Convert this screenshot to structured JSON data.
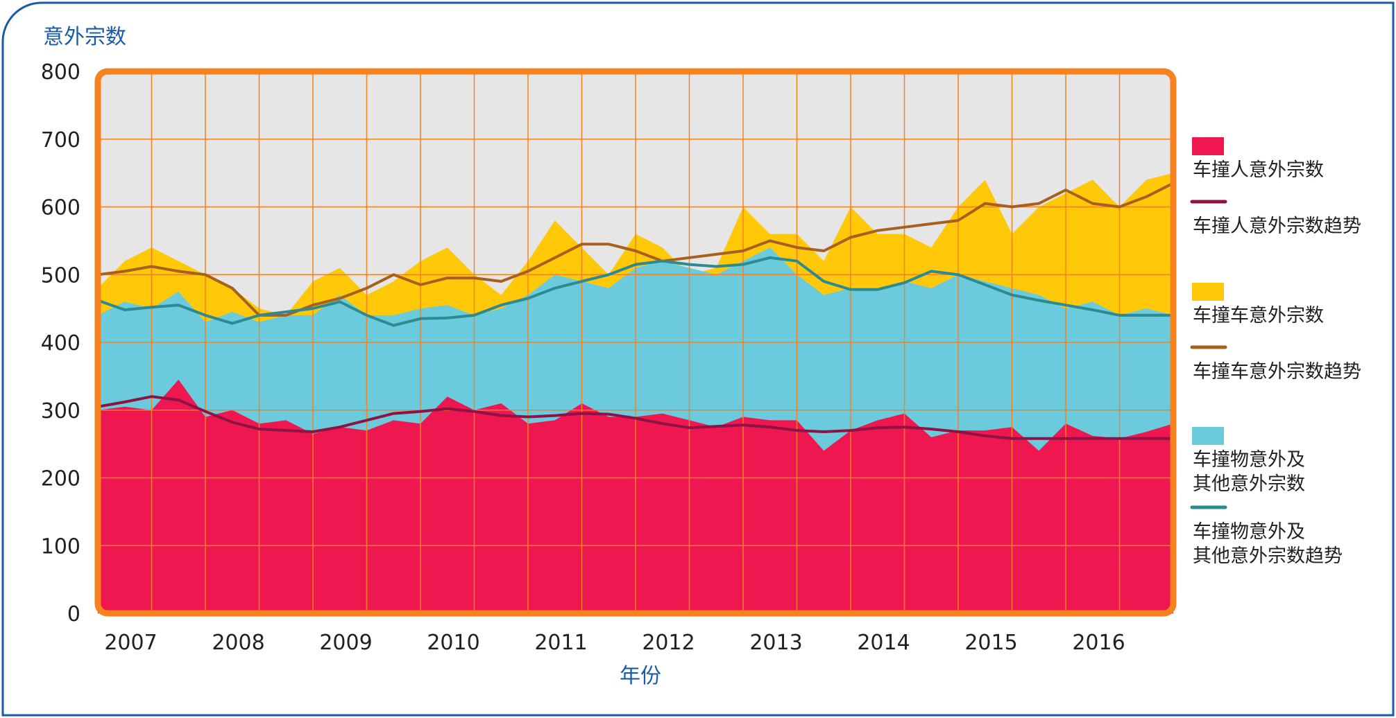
{
  "chart_data": {
    "type": "area",
    "ylabel": "意外宗数",
    "xlabel": "年份",
    "ylim": [
      0,
      800
    ],
    "yticks": [
      0,
      100,
      200,
      300,
      400,
      500,
      600,
      700,
      800
    ],
    "x_years": [
      "2007",
      "2008",
      "2009",
      "2010",
      "2011",
      "2012",
      "2013",
      "2014",
      "2015",
      "2016"
    ],
    "x_range": [
      2007.0,
      2017.0
    ],
    "stacked": true,
    "grid": true,
    "legend_position": "right",
    "series": [
      {
        "name": "车撞人意外宗数",
        "kind": "area",
        "color": "#EE1750",
        "points": [
          [
            2007.0,
            300
          ],
          [
            2007.25,
            305
          ],
          [
            2007.5,
            300
          ],
          [
            2007.75,
            345
          ],
          [
            2008.0,
            290
          ],
          [
            2008.25,
            300
          ],
          [
            2008.5,
            280
          ],
          [
            2008.75,
            285
          ],
          [
            2009.0,
            265
          ],
          [
            2009.25,
            275
          ],
          [
            2009.5,
            270
          ],
          [
            2009.75,
            285
          ],
          [
            2010.0,
            280
          ],
          [
            2010.25,
            320
          ],
          [
            2010.5,
            300
          ],
          [
            2010.75,
            310
          ],
          [
            2011.0,
            280
          ],
          [
            2011.25,
            285
          ],
          [
            2011.5,
            310
          ],
          [
            2011.75,
            290
          ],
          [
            2012.0,
            290
          ],
          [
            2012.25,
            295
          ],
          [
            2012.5,
            285
          ],
          [
            2012.75,
            275
          ],
          [
            2013.0,
            290
          ],
          [
            2013.25,
            285
          ],
          [
            2013.5,
            285
          ],
          [
            2013.75,
            240
          ],
          [
            2014.0,
            270
          ],
          [
            2014.25,
            285
          ],
          [
            2014.5,
            295
          ],
          [
            2014.75,
            260
          ],
          [
            2015.0,
            270
          ],
          [
            2015.25,
            270
          ],
          [
            2015.5,
            275
          ],
          [
            2015.75,
            240
          ],
          [
            2016.0,
            280
          ],
          [
            2016.25,
            262
          ],
          [
            2016.5,
            258
          ],
          [
            2016.75,
            268
          ],
          [
            2017.0,
            280
          ]
        ]
      },
      {
        "name": "车撞人意外宗数趋势",
        "kind": "line",
        "color": "#8E1345",
        "points": [
          [
            2007.0,
            305
          ],
          [
            2007.25,
            312
          ],
          [
            2007.5,
            320
          ],
          [
            2007.75,
            315
          ],
          [
            2008.0,
            298
          ],
          [
            2008.25,
            282
          ],
          [
            2008.5,
            272
          ],
          [
            2008.75,
            270
          ],
          [
            2009.0,
            268
          ],
          [
            2009.25,
            275
          ],
          [
            2009.5,
            285
          ],
          [
            2009.75,
            295
          ],
          [
            2010.0,
            298
          ],
          [
            2010.25,
            302
          ],
          [
            2010.5,
            298
          ],
          [
            2010.75,
            292
          ],
          [
            2011.0,
            290
          ],
          [
            2011.25,
            292
          ],
          [
            2011.5,
            295
          ],
          [
            2011.75,
            294
          ],
          [
            2012.0,
            288
          ],
          [
            2012.25,
            280
          ],
          [
            2012.5,
            274
          ],
          [
            2012.75,
            276
          ],
          [
            2013.0,
            278
          ],
          [
            2013.25,
            275
          ],
          [
            2013.5,
            270
          ],
          [
            2013.75,
            268
          ],
          [
            2014.0,
            270
          ],
          [
            2014.25,
            274
          ],
          [
            2014.5,
            275
          ],
          [
            2014.75,
            272
          ],
          [
            2015.0,
            268
          ],
          [
            2015.25,
            262
          ],
          [
            2015.5,
            258
          ],
          [
            2015.75,
            258
          ],
          [
            2016.0,
            258
          ],
          [
            2016.25,
            258
          ],
          [
            2016.5,
            258
          ],
          [
            2016.75,
            258
          ],
          [
            2017.0,
            258
          ]
        ]
      },
      {
        "name": "车撞车意外宗数",
        "kind": "area",
        "color": "#FFC90A",
        "points": [
          [
            2007.0,
            480
          ],
          [
            2007.25,
            520
          ],
          [
            2007.5,
            540
          ],
          [
            2007.75,
            520
          ],
          [
            2008.0,
            500
          ],
          [
            2008.25,
            480
          ],
          [
            2008.5,
            450
          ],
          [
            2008.75,
            440
          ],
          [
            2009.0,
            490
          ],
          [
            2009.25,
            510
          ],
          [
            2009.5,
            470
          ],
          [
            2009.75,
            490
          ],
          [
            2010.0,
            520
          ],
          [
            2010.25,
            540
          ],
          [
            2010.5,
            500
          ],
          [
            2010.75,
            470
          ],
          [
            2011.0,
            520
          ],
          [
            2011.25,
            580
          ],
          [
            2011.5,
            540
          ],
          [
            2011.75,
            500
          ],
          [
            2012.0,
            560
          ],
          [
            2012.25,
            540
          ],
          [
            2012.5,
            500
          ],
          [
            2012.75,
            510
          ],
          [
            2013.0,
            600
          ],
          [
            2013.25,
            560
          ],
          [
            2013.5,
            560
          ],
          [
            2013.75,
            520
          ],
          [
            2014.0,
            600
          ],
          [
            2014.25,
            560
          ],
          [
            2014.5,
            560
          ],
          [
            2014.75,
            540
          ],
          [
            2015.0,
            600
          ],
          [
            2015.25,
            640
          ],
          [
            2015.5,
            560
          ],
          [
            2015.75,
            600
          ],
          [
            2016.0,
            620
          ],
          [
            2016.25,
            640
          ],
          [
            2016.5,
            600
          ],
          [
            2016.75,
            640
          ],
          [
            2017.0,
            650
          ]
        ]
      },
      {
        "name": "车撞车意外宗数趋势",
        "kind": "line",
        "color": "#A8601E",
        "points": [
          [
            2007.0,
            500
          ],
          [
            2007.25,
            505
          ],
          [
            2007.5,
            512
          ],
          [
            2007.75,
            505
          ],
          [
            2008.0,
            500
          ],
          [
            2008.25,
            480
          ],
          [
            2008.5,
            440
          ],
          [
            2008.75,
            440
          ],
          [
            2009.0,
            455
          ],
          [
            2009.25,
            465
          ],
          [
            2009.5,
            480
          ],
          [
            2009.75,
            500
          ],
          [
            2010.0,
            485
          ],
          [
            2010.25,
            495
          ],
          [
            2010.5,
            495
          ],
          [
            2010.75,
            490
          ],
          [
            2011.0,
            505
          ],
          [
            2011.25,
            525
          ],
          [
            2011.5,
            545
          ],
          [
            2011.75,
            545
          ],
          [
            2012.0,
            535
          ],
          [
            2012.25,
            520
          ],
          [
            2012.5,
            525
          ],
          [
            2012.75,
            530
          ],
          [
            2013.0,
            535
          ],
          [
            2013.25,
            550
          ],
          [
            2013.5,
            540
          ],
          [
            2013.75,
            535
          ],
          [
            2014.0,
            555
          ],
          [
            2014.25,
            565
          ],
          [
            2014.5,
            570
          ],
          [
            2014.75,
            575
          ],
          [
            2015.0,
            580
          ],
          [
            2015.25,
            605
          ],
          [
            2015.5,
            600
          ],
          [
            2015.75,
            605
          ],
          [
            2016.0,
            625
          ],
          [
            2016.25,
            605
          ],
          [
            2016.5,
            600
          ],
          [
            2016.75,
            615
          ],
          [
            2017.0,
            635
          ]
        ]
      },
      {
        "name": "车撞物意外及其他意外宗数",
        "kind": "area",
        "color": "#6BCBDD",
        "points": [
          [
            2007.0,
            440
          ],
          [
            2007.25,
            460
          ],
          [
            2007.5,
            450
          ],
          [
            2007.75,
            475
          ],
          [
            2008.0,
            430
          ],
          [
            2008.25,
            445
          ],
          [
            2008.5,
            430
          ],
          [
            2008.75,
            440
          ],
          [
            2009.0,
            440
          ],
          [
            2009.25,
            470
          ],
          [
            2009.5,
            440
          ],
          [
            2009.75,
            440
          ],
          [
            2010.0,
            450
          ],
          [
            2010.25,
            455
          ],
          [
            2010.5,
            440
          ],
          [
            2010.75,
            450
          ],
          [
            2011.0,
            470
          ],
          [
            2011.25,
            500
          ],
          [
            2011.5,
            490
          ],
          [
            2011.75,
            480
          ],
          [
            2012.0,
            510
          ],
          [
            2012.25,
            520
          ],
          [
            2012.5,
            510
          ],
          [
            2012.75,
            500
          ],
          [
            2013.0,
            520
          ],
          [
            2013.25,
            540
          ],
          [
            2013.5,
            500
          ],
          [
            2013.75,
            470
          ],
          [
            2014.0,
            480
          ],
          [
            2014.25,
            480
          ],
          [
            2014.5,
            490
          ],
          [
            2014.75,
            480
          ],
          [
            2015.0,
            500
          ],
          [
            2015.25,
            490
          ],
          [
            2015.5,
            480
          ],
          [
            2015.75,
            470
          ],
          [
            2016.0,
            450
          ],
          [
            2016.25,
            460
          ],
          [
            2016.5,
            440
          ],
          [
            2016.75,
            450
          ],
          [
            2017.0,
            440
          ]
        ]
      },
      {
        "name": "车撞物意外及其他意外宗数趋势",
        "kind": "line",
        "color": "#2E8A91",
        "points": [
          [
            2007.0,
            462
          ],
          [
            2007.25,
            448
          ],
          [
            2007.5,
            452
          ],
          [
            2007.75,
            455
          ],
          [
            2008.0,
            440
          ],
          [
            2008.25,
            428
          ],
          [
            2008.5,
            440
          ],
          [
            2008.75,
            445
          ],
          [
            2009.0,
            450
          ],
          [
            2009.25,
            460
          ],
          [
            2009.5,
            440
          ],
          [
            2009.75,
            425
          ],
          [
            2010.0,
            435
          ],
          [
            2010.25,
            436
          ],
          [
            2010.5,
            440
          ],
          [
            2010.75,
            455
          ],
          [
            2011.0,
            465
          ],
          [
            2011.25,
            480
          ],
          [
            2011.5,
            490
          ],
          [
            2011.75,
            500
          ],
          [
            2012.0,
            515
          ],
          [
            2012.25,
            520
          ],
          [
            2012.5,
            515
          ],
          [
            2012.75,
            512
          ],
          [
            2013.0,
            515
          ],
          [
            2013.25,
            525
          ],
          [
            2013.5,
            520
          ],
          [
            2013.75,
            490
          ],
          [
            2014.0,
            478
          ],
          [
            2014.25,
            478
          ],
          [
            2014.5,
            488
          ],
          [
            2014.75,
            505
          ],
          [
            2015.0,
            500
          ],
          [
            2015.25,
            485
          ],
          [
            2015.5,
            470
          ],
          [
            2015.75,
            462
          ],
          [
            2016.0,
            455
          ],
          [
            2016.25,
            448
          ],
          [
            2016.5,
            440
          ],
          [
            2016.75,
            440
          ],
          [
            2017.0,
            440
          ]
        ]
      }
    ],
    "legend": [
      {
        "lines": [
          "车撞人意外宗数"
        ],
        "symbol": "box",
        "color": "#EE1750"
      },
      {
        "lines": [
          "车撞人意外宗数趋势"
        ],
        "symbol": "line",
        "color": "#8E1345"
      },
      {
        "lines": [
          "车撞车意外宗数"
        ],
        "symbol": "box",
        "color": "#FFC90A"
      },
      {
        "lines": [
          "车撞车意外宗数趋势"
        ],
        "symbol": "line",
        "color": "#A8601E"
      },
      {
        "lines": [
          "车撞物意外及",
          "其他意外宗数"
        ],
        "symbol": "box",
        "color": "#6BCBDD"
      },
      {
        "lines": [
          "车撞物意外及",
          "其他意外宗数趋势"
        ],
        "symbol": "line",
        "color": "#2E8A91"
      }
    ]
  },
  "colors": {
    "frame_border": "#1A5AA8",
    "plot_border": "#F5821F",
    "plot_background": "#E6E6E6",
    "gridline": "#F5821F",
    "title_text": "#1A5AA8",
    "axis_text": "#231F20"
  }
}
